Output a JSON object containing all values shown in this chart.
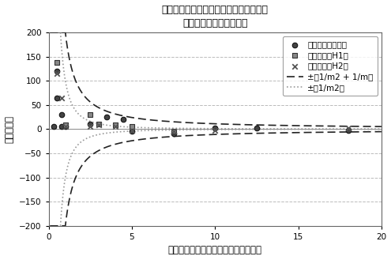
{
  "title_line1": "半値幅内の周波数応答関数のライン数と",
  "title_line2": "損失係数測定誤差の関係",
  "xlabel": "半値幅内の周波数応答関数のライン数",
  "ylabel": "誤差（％）",
  "xlim": [
    0,
    20
  ],
  "ylim": [
    -200,
    200
  ],
  "yticks": [
    -200,
    -150,
    -100,
    -50,
    0,
    50,
    100,
    150,
    200
  ],
  "xticks": [
    0,
    5,
    10,
    15,
    20
  ],
  "background_color": "#ffffff",
  "swept_sine_x": [
    0.3,
    0.5,
    0.5,
    0.8,
    0.8,
    1.0,
    2.5,
    3.5,
    4.5,
    5.0,
    7.5,
    10.0,
    12.5,
    18.0
  ],
  "swept_sine_y": [
    5.0,
    120.0,
    65.0,
    30.0,
    5.0,
    5.0,
    10.0,
    25.0,
    20.0,
    -5.0,
    -10.0,
    3.0,
    2.0,
    -3.0
  ],
  "random_h1_x": [
    0.5,
    1.0,
    2.5,
    3.0,
    4.0,
    5.0,
    7.5
  ],
  "random_h1_y": [
    137.0,
    8.0,
    30.0,
    10.0,
    8.0,
    5.0,
    -5.0
  ],
  "random_h2_x": [
    0.5,
    0.8,
    1.0,
    2.5,
    3.0,
    4.0,
    5.0,
    7.5,
    10.0,
    18.0
  ],
  "random_h2_y": [
    115.0,
    65.0,
    5.0,
    5.0,
    8.0,
    5.0,
    -3.0,
    -5.0,
    -3.0,
    2.0
  ],
  "curve_dark_color": "#222222",
  "curve_gray_color": "#999999",
  "legend_label0": "スウェプトサイン",
  "legend_label1": "ランダム（H1）",
  "legend_label2": "ランダム（H2）",
  "legend_label3": "±（1/m2 + 1/m）",
  "legend_label4": "±（1/m2）"
}
